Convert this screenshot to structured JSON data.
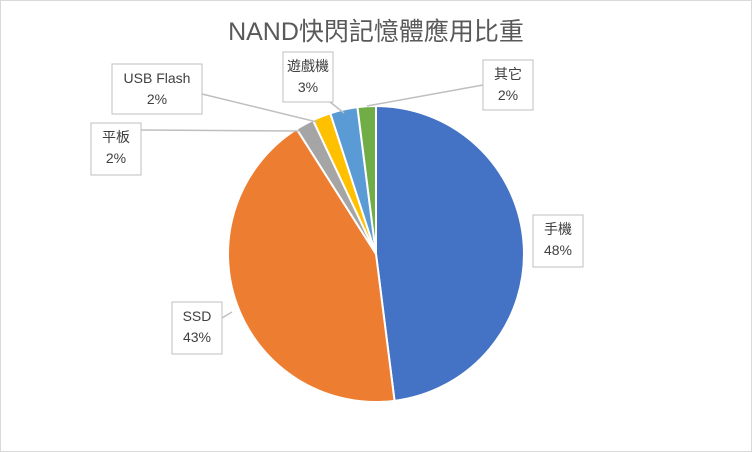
{
  "chart_data": {
    "type": "pie",
    "title": "NAND快閃記憶體應用比重",
    "slices": [
      {
        "name": "手機",
        "value": 48,
        "label": "48%",
        "color": "#4472c4"
      },
      {
        "name": "SSD",
        "value": 43,
        "label": "43%",
        "color": "#ed7d31"
      },
      {
        "name": "平板",
        "value": 2,
        "label": "2%",
        "color": "#a5a5a5"
      },
      {
        "name": "USB Flash",
        "value": 2,
        "label": "2%",
        "color": "#ffc000"
      },
      {
        "name": "遊戲機",
        "value": 3,
        "label": "3%",
        "color": "#5b9bd5"
      },
      {
        "name": "其它",
        "value": 2,
        "label": "2%",
        "color": "#70ad47"
      }
    ],
    "legend": "none",
    "data_labels": "callouts"
  }
}
